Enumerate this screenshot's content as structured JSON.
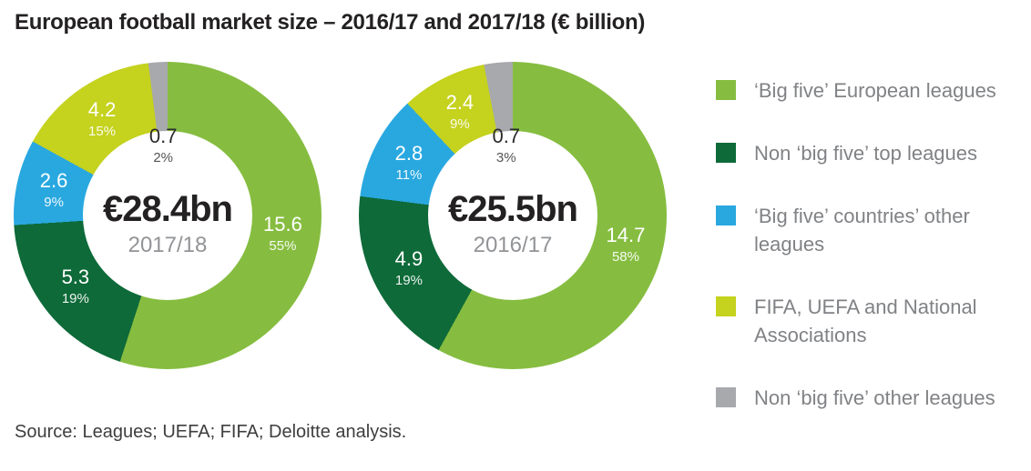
{
  "chart_data": {
    "type": "pie",
    "subtype": "donut",
    "title": "European football market size – 2016/17 and 2017/18 (€ billion)",
    "unit": "€ billion",
    "legend_position": "right",
    "legend": [
      {
        "label": "‘Big five’ European leagues",
        "color": "#86BD40"
      },
      {
        "label": "Non ‘big five’ top leagues",
        "color": "#0E6A39"
      },
      {
        "label": "‘Big five’ countries’ other leagues",
        "color": "#29A8E0"
      },
      {
        "label": "FIFA, UEFA and National Associations",
        "color": "#C5D21E"
      },
      {
        "label": "Non ‘big five’ other leagues",
        "color": "#A7A9AC"
      }
    ],
    "charts": [
      {
        "period": "2017/18",
        "center_value_label": "€28.4bn",
        "total": 28.4,
        "segments": [
          {
            "name": "‘Big five’ European leagues",
            "value": 15.6,
            "pct": 55,
            "color": "#86BD40",
            "label_in_hole": false
          },
          {
            "name": "Non ‘big five’ top leagues",
            "value": 5.3,
            "pct": 19,
            "color": "#0E6A39",
            "label_in_hole": false
          },
          {
            "name": "‘Big five’ countries’ other leagues",
            "value": 2.6,
            "pct": 9,
            "color": "#29A8E0",
            "label_in_hole": false
          },
          {
            "name": "FIFA, UEFA and National Associations",
            "value": 4.2,
            "pct": 15,
            "color": "#C5D21E",
            "label_in_hole": false
          },
          {
            "name": "Non ‘big five’ other leagues",
            "value": 0.7,
            "pct": 2,
            "color": "#A7A9AC",
            "label_in_hole": true
          }
        ]
      },
      {
        "period": "2016/17",
        "center_value_label": "€25.5bn",
        "total": 25.5,
        "segments": [
          {
            "name": "‘Big five’ European leagues",
            "value": 14.7,
            "pct": 58,
            "color": "#86BD40",
            "label_in_hole": false
          },
          {
            "name": "Non ‘big five’ top leagues",
            "value": 4.9,
            "pct": 19,
            "color": "#0E6A39",
            "label_in_hole": false
          },
          {
            "name": "‘Big five’ countries’ other leagues",
            "value": 2.8,
            "pct": 11,
            "color": "#29A8E0",
            "label_in_hole": false
          },
          {
            "name": "FIFA, UEFA and National Associations",
            "value": 2.4,
            "pct": 9,
            "color": "#C5D21E",
            "label_in_hole": false
          },
          {
            "name": "Non ‘big five’ other leagues",
            "value": 0.7,
            "pct": 3,
            "color": "#A7A9AC",
            "label_in_hole": true
          }
        ]
      }
    ],
    "source": "Source: Leagues; UEFA; FIFA; Deloitte analysis."
  },
  "colors": {
    "title_text": "#232122",
    "center_value_text": "#232122",
    "center_period_text": "#919396",
    "segment_label_text": "#FFFFFF",
    "in_hole_label_text": "#2B2B2D",
    "legend_text": "#808285",
    "source_text": "#3E3E40",
    "background": "#FFFFFF"
  }
}
